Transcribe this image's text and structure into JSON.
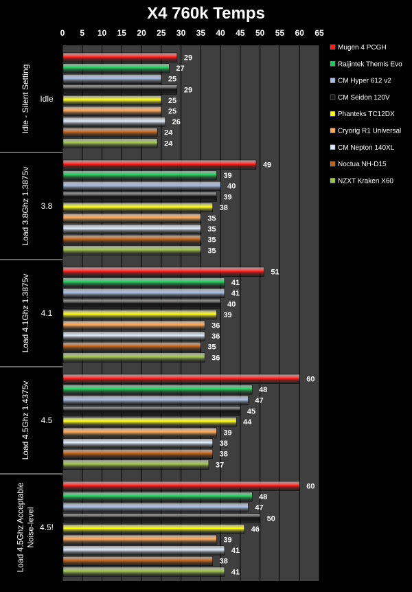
{
  "chart_data": {
    "type": "bar",
    "orientation": "horizontal",
    "title": "X4 760k Temps",
    "xlim": [
      0,
      65
    ],
    "x_ticks": [
      0,
      5,
      10,
      15,
      20,
      25,
      30,
      35,
      40,
      45,
      50,
      55,
      60,
      65
    ],
    "grid": true,
    "legend_position": "right",
    "groups": [
      {
        "label": "Idle",
        "side_label": [
          "Idle - Silent Setting"
        ]
      },
      {
        "label": "3.8",
        "side_label": [
          "Load 3.8Ghz 1.3875v"
        ]
      },
      {
        "label": "4.1",
        "side_label": [
          "Load 4.1Ghz 1.3875v"
        ]
      },
      {
        "label": "4.5",
        "side_label": [
          "Load 4.5Ghz 1.4375v"
        ]
      },
      {
        "label": "4.5!",
        "side_label": [
          "Load 4.5Ghz Acceptable",
          "Noise-level"
        ]
      }
    ],
    "series": [
      {
        "name": "Mugen 4 PCGH",
        "color": "#ff1a1a",
        "values": [
          29,
          49,
          51,
          60,
          60
        ]
      },
      {
        "name": "Raijintek Themis Evo",
        "color": "#1fc75a",
        "values": [
          27,
          39,
          41,
          48,
          48
        ]
      },
      {
        "name": "CM Hyper 612 v2",
        "color": "#a9bde0",
        "values": [
          25,
          40,
          41,
          47,
          47
        ]
      },
      {
        "name": "CM Seidon 120V",
        "color": "#141414",
        "values": [
          29,
          39,
          40,
          45,
          50
        ]
      },
      {
        "name": "Phanteks TC12DX",
        "color": "#ffff1a",
        "values": [
          25,
          38,
          39,
          44,
          46
        ]
      },
      {
        "name": "Cryorig R1 Universal",
        "color": "#ffa857",
        "values": [
          25,
          35,
          36,
          39,
          39
        ]
      },
      {
        "name": "CM Nepton 140XL",
        "color": "#dde9fa",
        "values": [
          26,
          35,
          36,
          38,
          41
        ]
      },
      {
        "name": "Noctua NH-D15",
        "color": "#c0621b",
        "values": [
          24,
          35,
          35,
          38,
          38
        ]
      },
      {
        "name": "NZXT Kraken X60",
        "color": "#9fc24f",
        "values": [
          24,
          35,
          36,
          37,
          41
        ]
      }
    ]
  }
}
